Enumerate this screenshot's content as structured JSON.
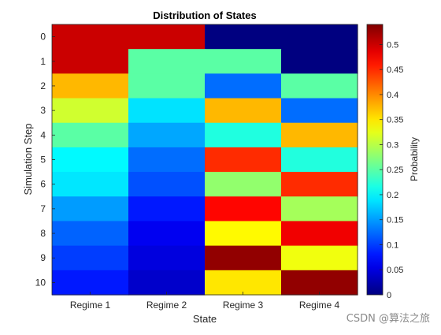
{
  "chart_data": {
    "type": "heatmap",
    "title": "Distribution of States",
    "xlabel": "State",
    "ylabel": "Simulation Step",
    "x_categories": [
      "Regime 1",
      "Regime 2",
      "Regime 3",
      "Regime 4"
    ],
    "y_categories": [
      "0",
      "1",
      "2",
      "3",
      "4",
      "5",
      "6",
      "7",
      "8",
      "9",
      "10"
    ],
    "values": [
      [
        0.5,
        0.5,
        0.0,
        0.0
      ],
      [
        0.5,
        0.25,
        0.25,
        0.0
      ],
      [
        0.375,
        0.25,
        0.125,
        0.25
      ],
      [
        0.3125,
        0.1875,
        0.375,
        0.125
      ],
      [
        0.25,
        0.156,
        0.219,
        0.375
      ],
      [
        0.2,
        0.125,
        0.45,
        0.22
      ],
      [
        0.19,
        0.11,
        0.28,
        0.45
      ],
      [
        0.15,
        0.08,
        0.47,
        0.29
      ],
      [
        0.12,
        0.06,
        0.34,
        0.48
      ],
      [
        0.1,
        0.05,
        0.53,
        0.33
      ],
      [
        0.08,
        0.04,
        0.35,
        0.53
      ]
    ],
    "colormap": "jet",
    "clim": [
      0,
      0.54
    ],
    "colorbar": {
      "label": "Probability",
      "ticks": [
        "0",
        "0.05",
        "0.1",
        "0.15",
        "0.2",
        "0.25",
        "0.3",
        "0.35",
        "0.4",
        "0.45",
        "0.5"
      ]
    },
    "grid": false,
    "legend": "none"
  },
  "watermark": "CSDN @算法之旅"
}
